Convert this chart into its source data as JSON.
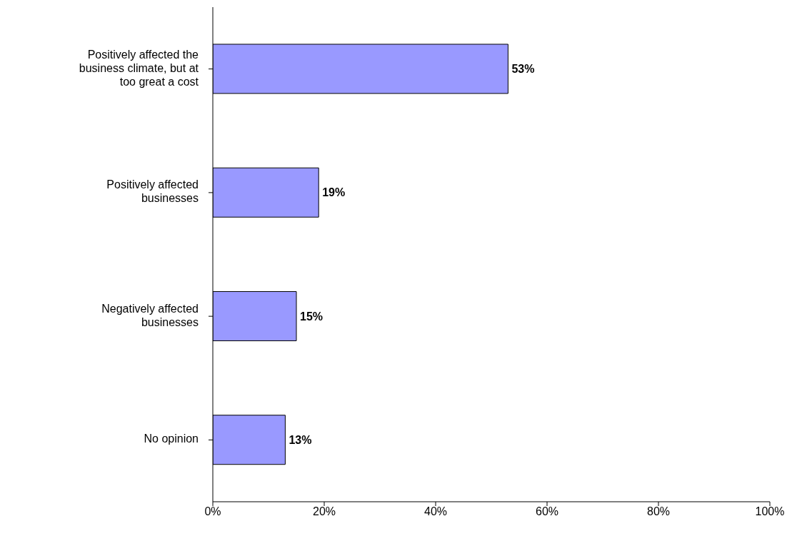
{
  "chart_data": {
    "type": "bar",
    "orientation": "horizontal",
    "categories": [
      "Positively affected the business climate, but at too great a cost",
      "Positively affected businesses",
      "Negatively affected businesses",
      "No opinion"
    ],
    "values": [
      53,
      19,
      15,
      13
    ],
    "value_labels": [
      "53%",
      "19%",
      "15%",
      "13%"
    ],
    "color": "#9999ff",
    "xlim": [
      0,
      100
    ],
    "xticks": [
      {
        "value": 0,
        "label": "0%"
      },
      {
        "value": 20,
        "label": "20%"
      },
      {
        "value": 40,
        "label": "40%"
      },
      {
        "value": 60,
        "label": "60%"
      },
      {
        "value": 80,
        "label": "80%"
      },
      {
        "value": 100,
        "label": "100%"
      }
    ],
    "grid": false,
    "legend": false
  }
}
